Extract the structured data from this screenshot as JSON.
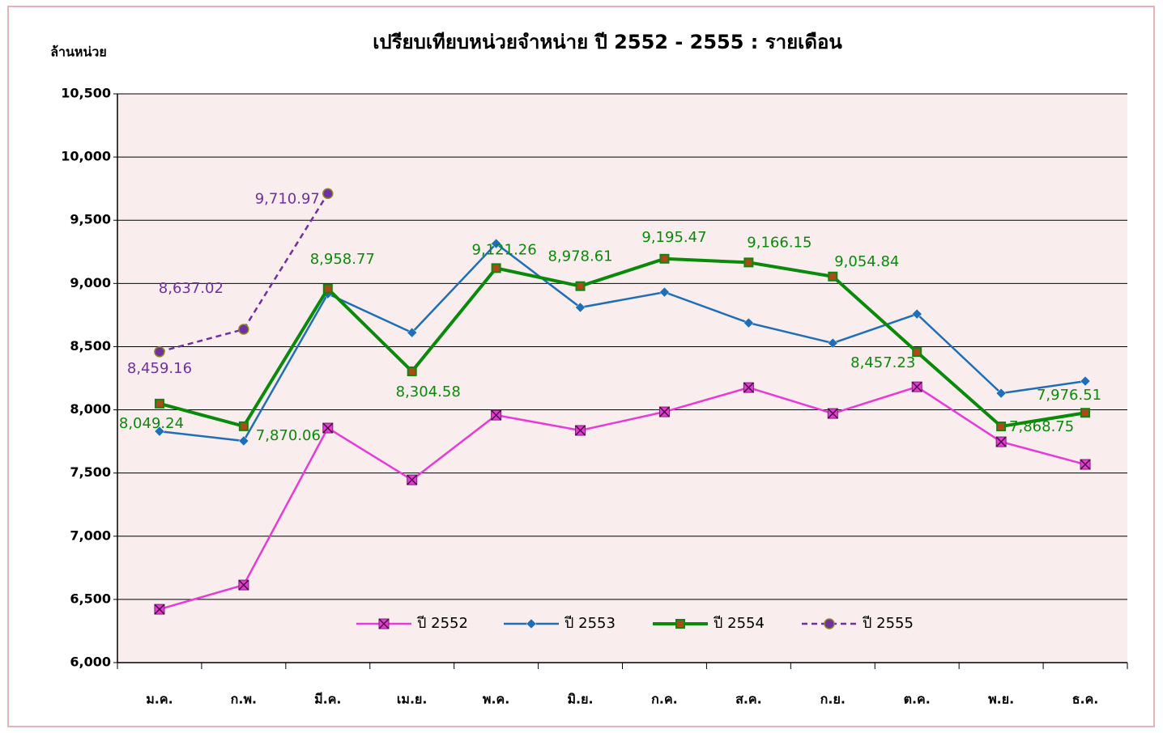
{
  "chart_data": {
    "type": "line",
    "title": "เปรียบเทียบหน่วยจำหน่าย ปี 2552 - 2555 : รายเดือน",
    "y_label": "ล้านหน่วย",
    "categories": [
      "ม.ค.",
      "ก.พ.",
      "มี.ค.",
      "เม.ย.",
      "พ.ค.",
      "มิ.ย.",
      "ก.ค.",
      "ส.ค.",
      "ก.ย.",
      "ต.ค.",
      "พ.ย.",
      "ธ.ค."
    ],
    "ylim": [
      6000,
      10500
    ],
    "yticks": [
      {
        "value": 6000,
        "label": "6,000"
      },
      {
        "value": 6500,
        "label": "6,500"
      },
      {
        "value": 7000,
        "label": "7,000"
      },
      {
        "value": 7500,
        "label": "7,500"
      },
      {
        "value": 8000,
        "label": "8,000"
      },
      {
        "value": 8500,
        "label": "8,500"
      },
      {
        "value": 9000,
        "label": "9,000"
      },
      {
        "value": 9500,
        "label": "9,500"
      },
      {
        "value": 10000,
        "label": "10,000"
      },
      {
        "value": 10500,
        "label": "10,500"
      }
    ],
    "grid": true,
    "legend": "bottom",
    "series": [
      {
        "name": "ปี 2552",
        "color": "#e83ad8",
        "marker": "x-square",
        "values": [
          6422,
          6614,
          7856,
          7446,
          7958,
          7837,
          7984,
          8176,
          7971,
          8182,
          7747,
          7568
        ]
      },
      {
        "name": "ปี 2553",
        "color": "#1f6fb8",
        "marker": "diamond",
        "values": [
          7830,
          7754,
          8918,
          8611,
          9315,
          8810,
          8931,
          8688,
          8528,
          8758,
          8131,
          8227
        ]
      },
      {
        "name": "ปี 2554",
        "color": "#0a8a0a",
        "marker": "square",
        "values": [
          8049.24,
          7870.06,
          8958.77,
          8304.58,
          9121.26,
          8978.61,
          9195.47,
          9166.15,
          9054.84,
          8457.23,
          7868.75,
          7976.51
        ],
        "value_labels": [
          "8,049.24",
          "7,870.06",
          "8,958.77",
          "8,304.58",
          "9,121.26",
          "8,978.61",
          "9,195.47",
          "9,166.15",
          "9,054.84",
          "8,457.23",
          "7,868.75",
          "7,976.51"
        ]
      },
      {
        "name": "ปี 2555",
        "color": "#7030a0",
        "marker": "circle",
        "dashed": true,
        "values": [
          8459.16,
          8637.02,
          9710.97,
          null,
          null,
          null,
          null,
          null,
          null,
          null,
          null,
          null
        ],
        "value_labels": [
          "8,459.16",
          "8,637.02",
          "9,710.97",
          null,
          null,
          null,
          null,
          null,
          null,
          null,
          null,
          null
        ]
      }
    ]
  }
}
